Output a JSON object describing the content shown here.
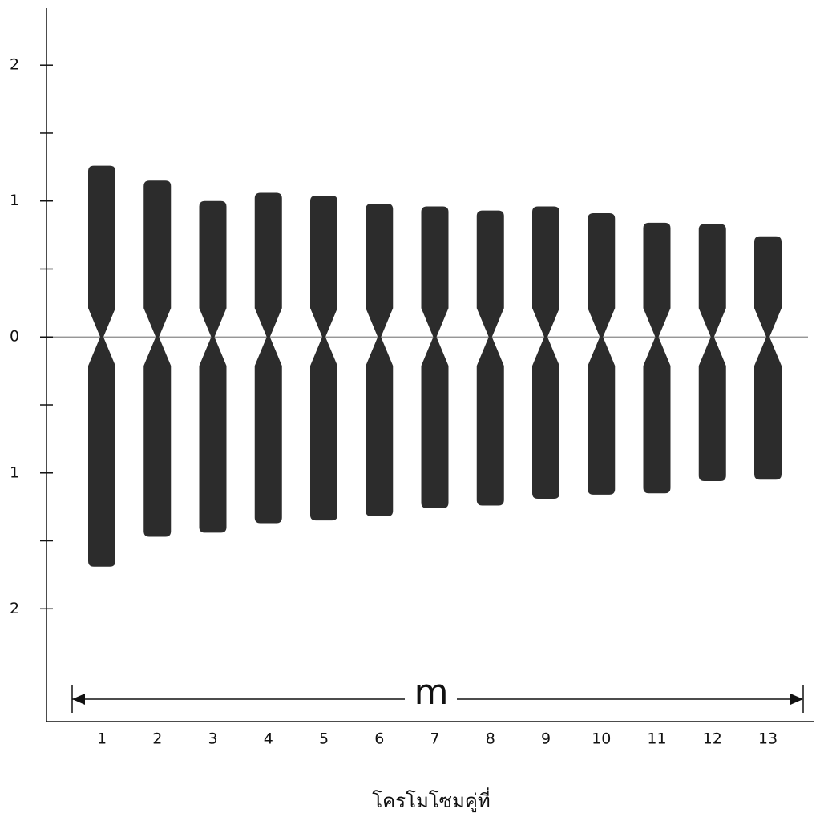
{
  "chart_data": {
    "type": "idiogram",
    "categories": [
      "1",
      "2",
      "3",
      "4",
      "5",
      "6",
      "7",
      "8",
      "9",
      "10",
      "11",
      "12",
      "13"
    ],
    "series": [
      {
        "color": "#1a1a1a",
        "values": [
          1.26,
          1.15,
          1.0,
          1.06,
          1.04,
          0.98,
          0.96,
          0.93,
          0.96,
          0.91,
          0.84,
          0.83,
          0.74
        ]
      },
      {
        "color": "#1a1a1a",
        "values": [
          -1.69,
          -1.47,
          -1.44,
          -1.37,
          -1.35,
          -1.32,
          -1.26,
          -1.24,
          -1.19,
          -1.16,
          -1.15,
          -1.06,
          -1.05
        ]
      }
    ],
    "ylim": [
      -2.83,
      2.42
    ],
    "yticks": [
      {
        "value": 2,
        "label": "2"
      },
      {
        "value": 1,
        "label": "1"
      },
      0,
      {
        "value": -1,
        "label": "1"
      },
      {
        "value": -2,
        "label": "2"
      }
    ],
    "yminorticks": [
      1.5,
      0.5,
      -0.5,
      -1.5
    ],
    "xlabel": "โครโมโซมคู่ที่",
    "annotation": "m"
  }
}
